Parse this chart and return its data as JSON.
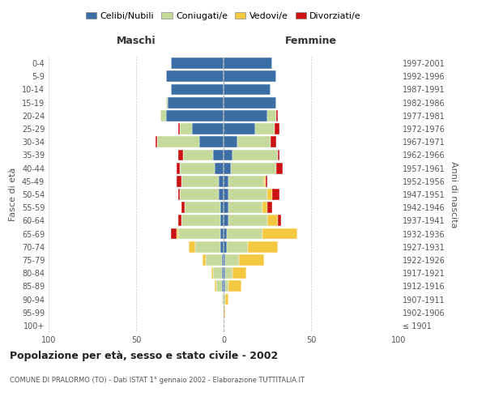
{
  "age_groups": [
    "100+",
    "95-99",
    "90-94",
    "85-89",
    "80-84",
    "75-79",
    "70-74",
    "65-69",
    "60-64",
    "55-59",
    "50-54",
    "45-49",
    "40-44",
    "35-39",
    "30-34",
    "25-29",
    "20-24",
    "15-19",
    "10-14",
    "5-9",
    "0-4"
  ],
  "birth_years": [
    "≤ 1901",
    "1902-1906",
    "1907-1911",
    "1912-1916",
    "1917-1921",
    "1922-1926",
    "1927-1931",
    "1932-1936",
    "1937-1941",
    "1942-1946",
    "1947-1951",
    "1952-1956",
    "1957-1961",
    "1962-1966",
    "1967-1971",
    "1972-1976",
    "1977-1981",
    "1982-1986",
    "1987-1991",
    "1992-1996",
    "1997-2001"
  ],
  "males": {
    "single": [
      0,
      0,
      0,
      1,
      1,
      1,
      2,
      2,
      2,
      2,
      3,
      3,
      5,
      6,
      14,
      18,
      33,
      32,
      30,
      33,
      30
    ],
    "married": [
      0,
      0,
      1,
      3,
      5,
      9,
      14,
      24,
      22,
      20,
      22,
      21,
      20,
      17,
      24,
      7,
      3,
      1,
      0,
      0,
      0
    ],
    "widowed": [
      0,
      0,
      0,
      1,
      1,
      2,
      4,
      1,
      0,
      0,
      0,
      0,
      0,
      0,
      0,
      0,
      0,
      0,
      0,
      0,
      0
    ],
    "divorced": [
      0,
      0,
      0,
      0,
      0,
      0,
      0,
      3,
      2,
      2,
      1,
      3,
      2,
      3,
      1,
      1,
      0,
      0,
      0,
      0,
      0
    ]
  },
  "females": {
    "single": [
      0,
      0,
      0,
      1,
      1,
      1,
      2,
      2,
      3,
      3,
      3,
      3,
      4,
      5,
      8,
      18,
      25,
      30,
      27,
      30,
      28
    ],
    "married": [
      0,
      0,
      1,
      2,
      4,
      8,
      12,
      20,
      22,
      19,
      22,
      20,
      26,
      26,
      19,
      11,
      5,
      0,
      0,
      0,
      0
    ],
    "widowed": [
      0,
      1,
      2,
      7,
      8,
      14,
      17,
      20,
      6,
      3,
      3,
      1,
      0,
      0,
      0,
      0,
      0,
      0,
      0,
      0,
      0
    ],
    "divorced": [
      0,
      0,
      0,
      0,
      0,
      0,
      0,
      0,
      2,
      3,
      4,
      1,
      4,
      1,
      3,
      3,
      1,
      0,
      0,
      0,
      0
    ]
  },
  "colors": {
    "single": "#3a6ea5",
    "married": "#c5d99a",
    "widowed": "#f5c842",
    "divorced": "#cc1111"
  },
  "legend_labels": [
    "Celibi/Nubili",
    "Coniugati/e",
    "Vedovi/e",
    "Divorziati/e"
  ],
  "title": "Popolazione per età, sesso e stato civile - 2002",
  "subtitle": "COMUNE DI PRALORMO (TO) - Dati ISTAT 1° gennaio 2002 - Elaborazione TUTTITALIA.IT",
  "xlabel_left": "Maschi",
  "xlabel_right": "Femmine",
  "ylabel_left": "Fasce di età",
  "ylabel_right": "Anni di nascita",
  "xlim": 100,
  "bg_color": "#ffffff",
  "grid_color": "#cccccc",
  "bar_edge_color": "#ffffff"
}
